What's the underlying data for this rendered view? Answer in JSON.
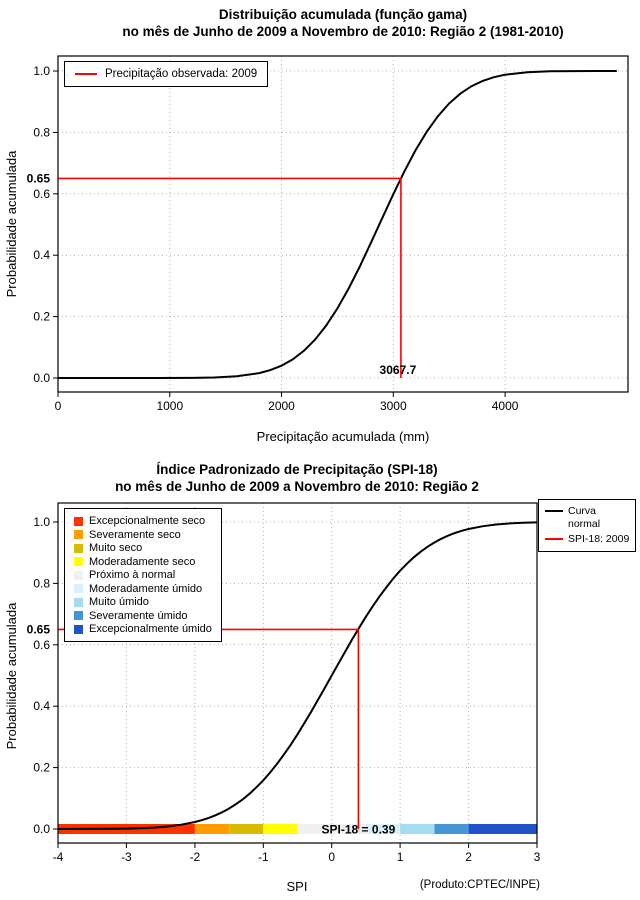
{
  "window": {
    "background": "#ffffff"
  },
  "chart_data": [
    {
      "type": "line",
      "title": "Distribuição acumulada (função gama)",
      "subtitle": "no mês de Junho de 2009 a Novembro de 2010: Região 2 (1981-2010)",
      "xlabel": "Precipitação acumulada (mm)",
      "ylabel": "Probabilidade acumulada",
      "xlim": [
        0,
        5100
      ],
      "ylim": [
        0,
        1
      ],
      "grid": true,
      "x_ticks": [
        0,
        1000,
        2000,
        3000,
        4000
      ],
      "x_tick_labels": [
        "0",
        "1000",
        "2000",
        "3000",
        "4000"
      ],
      "y_ticks": [
        0,
        0.2,
        0.4,
        0.6,
        0.8,
        1
      ],
      "y_tick_labels": [
        "0.0",
        "0.2",
        "0.4",
        "0.6",
        "0.8",
        "1.0"
      ],
      "legend": [
        {
          "label": "Precipitação observada: 2009",
          "color": "#ff0000"
        }
      ],
      "curve": {
        "name": "Distribuição gama acumulada",
        "color": "#000000",
        "x": [
          0,
          300,
          600,
          900,
          1200,
          1400,
          1600,
          1800,
          1900,
          2000,
          2100,
          2200,
          2300,
          2400,
          2500,
          2600,
          2700,
          2800,
          2900,
          3000,
          3100,
          3200,
          3300,
          3400,
          3500,
          3600,
          3700,
          3800,
          3900,
          4000,
          4200,
          4400,
          4600,
          4800,
          5000
        ],
        "y": [
          0,
          0,
          0,
          0.0001,
          0.0004,
          0.0016,
          0.0054,
          0.0158,
          0.0256,
          0.0401,
          0.0606,
          0.0885,
          0.1251,
          0.1711,
          0.2266,
          0.2912,
          0.3632,
          0.4404,
          0.5199,
          0.5987,
          0.6736,
          0.7422,
          0.8023,
          0.8531,
          0.8944,
          0.9265,
          0.9505,
          0.9678,
          0.9798,
          0.9878,
          0.996,
          0.9989,
          0.9997,
          0.9999,
          1
        ]
      },
      "marker": {
        "x": 3067.7,
        "y": 0.65,
        "x_label": "3067.7",
        "y_label": "0.65",
        "color": "#ff0000"
      }
    },
    {
      "type": "line",
      "title": "Índice Padronizado de Precipitação (SPI-18)",
      "subtitle": "no mês de Junho de 2009 a Novembro de 2010: Região 2",
      "xlabel": "SPI",
      "ylabel": "Probabilidade acumulada",
      "xlim": [
        -4,
        3
      ],
      "ylim": [
        0,
        1
      ],
      "grid": true,
      "x_ticks": [
        -4,
        -3,
        -2,
        -1,
        0,
        1,
        2,
        3
      ],
      "x_tick_labels": [
        "-4",
        "-3",
        "-2",
        "-1",
        "0",
        "1",
        "2",
        "3"
      ],
      "y_ticks": [
        0,
        0.2,
        0.4,
        0.6,
        0.8,
        1
      ],
      "y_tick_labels": [
        "0.0",
        "0.2",
        "0.4",
        "0.6",
        "0.8",
        "1.0"
      ],
      "legend": [
        {
          "label": "Curva normal",
          "color": "#000000"
        },
        {
          "label": "SPI-18: 2009",
          "color": "#ff0000"
        }
      ],
      "categories": [
        {
          "label": "Excepcionalmente seco",
          "color": "#ff3000",
          "range": [
            -4,
            -2
          ]
        },
        {
          "label": "Severamente seco",
          "color": "#ff9c00",
          "range": [
            -2,
            -1.5
          ]
        },
        {
          "label": "Muito seco",
          "color": "#d8bb00",
          "range": [
            -1.5,
            -1
          ]
        },
        {
          "label": "Moderadamente seco",
          "color": "#ffff00",
          "range": [
            -1,
            -0.5
          ]
        },
        {
          "label": "Próximo à normal",
          "color": "#f0f0f0",
          "range": [
            -0.5,
            0.5
          ]
        },
        {
          "label": "Moderadamente úmido",
          "color": "#d8f0fa",
          "range": [
            0.5,
            1
          ]
        },
        {
          "label": "Muito úmido",
          "color": "#a6dcf0",
          "range": [
            1,
            1.5
          ]
        },
        {
          "label": "Severamente úmido",
          "color": "#4596d7",
          "range": [
            1.5,
            2
          ]
        },
        {
          "label": "Excepcionalmente úmido",
          "color": "#2153c8",
          "range": [
            2,
            3
          ]
        }
      ],
      "curve": {
        "name": "Curva normal",
        "color": "#000000",
        "x": [
          -4,
          -3.6,
          -3.2,
          -3,
          -2.8,
          -2.6,
          -2.4,
          -2.2,
          -2,
          -1.9,
          -1.8,
          -1.7,
          -1.6,
          -1.5,
          -1.4,
          -1.3,
          -1.2,
          -1.1,
          -1,
          -0.9,
          -0.8,
          -0.7,
          -0.6,
          -0.5,
          -0.4,
          -0.3,
          -0.2,
          -0.1,
          0,
          0.1,
          0.2,
          0.3,
          0.4,
          0.5,
          0.6,
          0.7,
          0.8,
          0.9,
          1,
          1.1,
          1.2,
          1.3,
          1.4,
          1.5,
          1.6,
          1.7,
          1.8,
          1.9,
          2,
          2.2,
          2.4,
          2.6,
          2.8,
          3
        ],
        "y": [
          0.0,
          0.0002,
          0.0007,
          0.0013,
          0.0026,
          0.0047,
          0.0082,
          0.0139,
          0.0228,
          0.0287,
          0.0359,
          0.0446,
          0.0548,
          0.0668,
          0.0808,
          0.0968,
          0.1151,
          0.1357,
          0.1587,
          0.1841,
          0.2119,
          0.242,
          0.2743,
          0.3085,
          0.3446,
          0.3821,
          0.4207,
          0.4602,
          0.5,
          0.5398,
          0.5793,
          0.6179,
          0.6554,
          0.6915,
          0.7257,
          0.758,
          0.7881,
          0.8159,
          0.8413,
          0.8643,
          0.8849,
          0.9032,
          0.9192,
          0.9332,
          0.9452,
          0.9554,
          0.9641,
          0.9713,
          0.9772,
          0.9861,
          0.9918,
          0.9953,
          0.9974,
          0.9987
        ]
      },
      "marker": {
        "x": 0.39,
        "y": 0.65,
        "x_label": "SPI-18 = 0.39",
        "y_label": "0.65",
        "color": "#ff0000"
      },
      "credit": "(Produto:CPTEC/INPE)"
    }
  ]
}
